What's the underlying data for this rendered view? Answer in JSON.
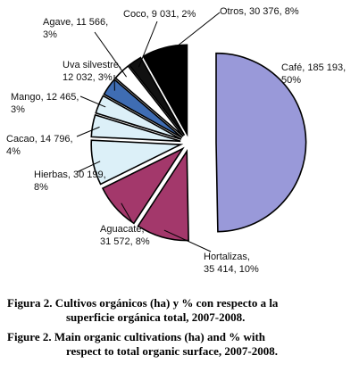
{
  "chart_data": {
    "type": "pie",
    "exploded": true,
    "start": "12 o'clock, clockwise",
    "slices": [
      {
        "name": "Café",
        "value": 185193,
        "pct": 50,
        "color": "#9999d9",
        "label": [
          "Café, 185 193,",
          "50%"
        ]
      },
      {
        "name": "Hortalizas",
        "value": 35414,
        "pct": 10,
        "color": "#a3386b",
        "label": [
          "Hortalizas,",
          "35 414, 10%"
        ]
      },
      {
        "name": "Aguacate",
        "value": 31572,
        "pct": 8,
        "color": "#a3386b",
        "label": [
          "Aguacate,",
          "31 572, 8%"
        ]
      },
      {
        "name": "Hierbas",
        "value": 30199,
        "pct": 8,
        "color": "#dcf0f8",
        "label": [
          "Hierbas, 30 199,",
          "8%"
        ]
      },
      {
        "name": "Cacao",
        "value": 14796,
        "pct": 4,
        "color": "#dcf0f8",
        "label": [
          "Cacao, 14 796,",
          "4%"
        ]
      },
      {
        "name": "Mango",
        "value": 12465,
        "pct": 3,
        "color": "#dcf0f8",
        "label": [
          "Mango, 12 465,",
          "3%"
        ]
      },
      {
        "name": "Uva silvestre",
        "value": 12032,
        "pct": 3,
        "color": "#3f6db3",
        "label": [
          "Uva silvestre,",
          "12 032, 3%"
        ]
      },
      {
        "name": "Agave",
        "value": 11566,
        "pct": 3,
        "color": "#ffffff",
        "label": [
          "Agave, 11 566,",
          "3%"
        ]
      },
      {
        "name": "Coco",
        "value": 9031,
        "pct": 2,
        "color": "#111111",
        "label": [
          "Coco, 9 031, 2%"
        ]
      },
      {
        "name": "Otros",
        "value": 30376,
        "pct": 8,
        "color": "#000000",
        "label": [
          "Otros, 30 376, 8%"
        ]
      }
    ]
  },
  "caption": {
    "es_line1": "Figura 2. Cultivos orgánicos (ha) y % con respecto a la",
    "es_line2": "superficie orgánica total, 2007-2008.",
    "en_line1": "Figure 2. Main organic cultivations (ha) and % with",
    "en_line2": "respect to total organic surface, 2007-2008."
  }
}
